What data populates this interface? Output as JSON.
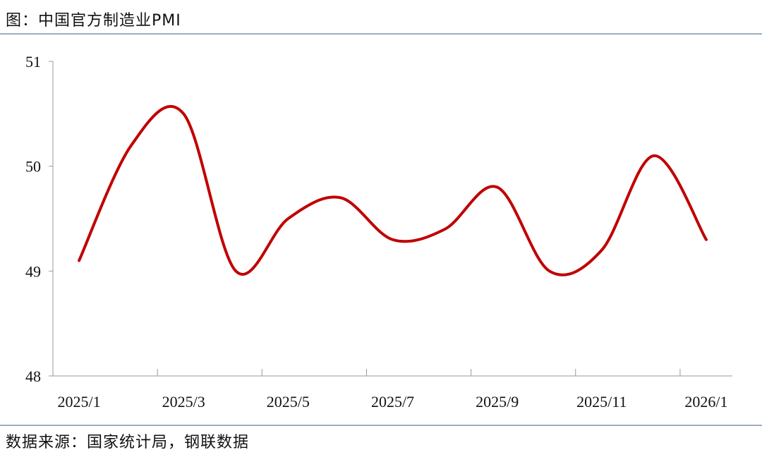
{
  "chart_data": {
    "type": "line",
    "title": "图：中国官方制造业PMI",
    "source": "数据来源：国家统计局，钢联数据",
    "categories": [
      "2025/1",
      null,
      "2025/3",
      null,
      "2025/5",
      null,
      "2025/7",
      null,
      "2025/9",
      null,
      "2025/11",
      null,
      "2026/1"
    ],
    "values": [
      49.1,
      50.2,
      50.5,
      49.0,
      49.5,
      49.7,
      49.3,
      49.4,
      49.8,
      49.0,
      49.2,
      50.1,
      49.3
    ],
    "color": "#c00000",
    "ylim": [
      48,
      51
    ],
    "yticks": [
      48,
      49,
      50,
      51
    ],
    "smooth": true
  }
}
